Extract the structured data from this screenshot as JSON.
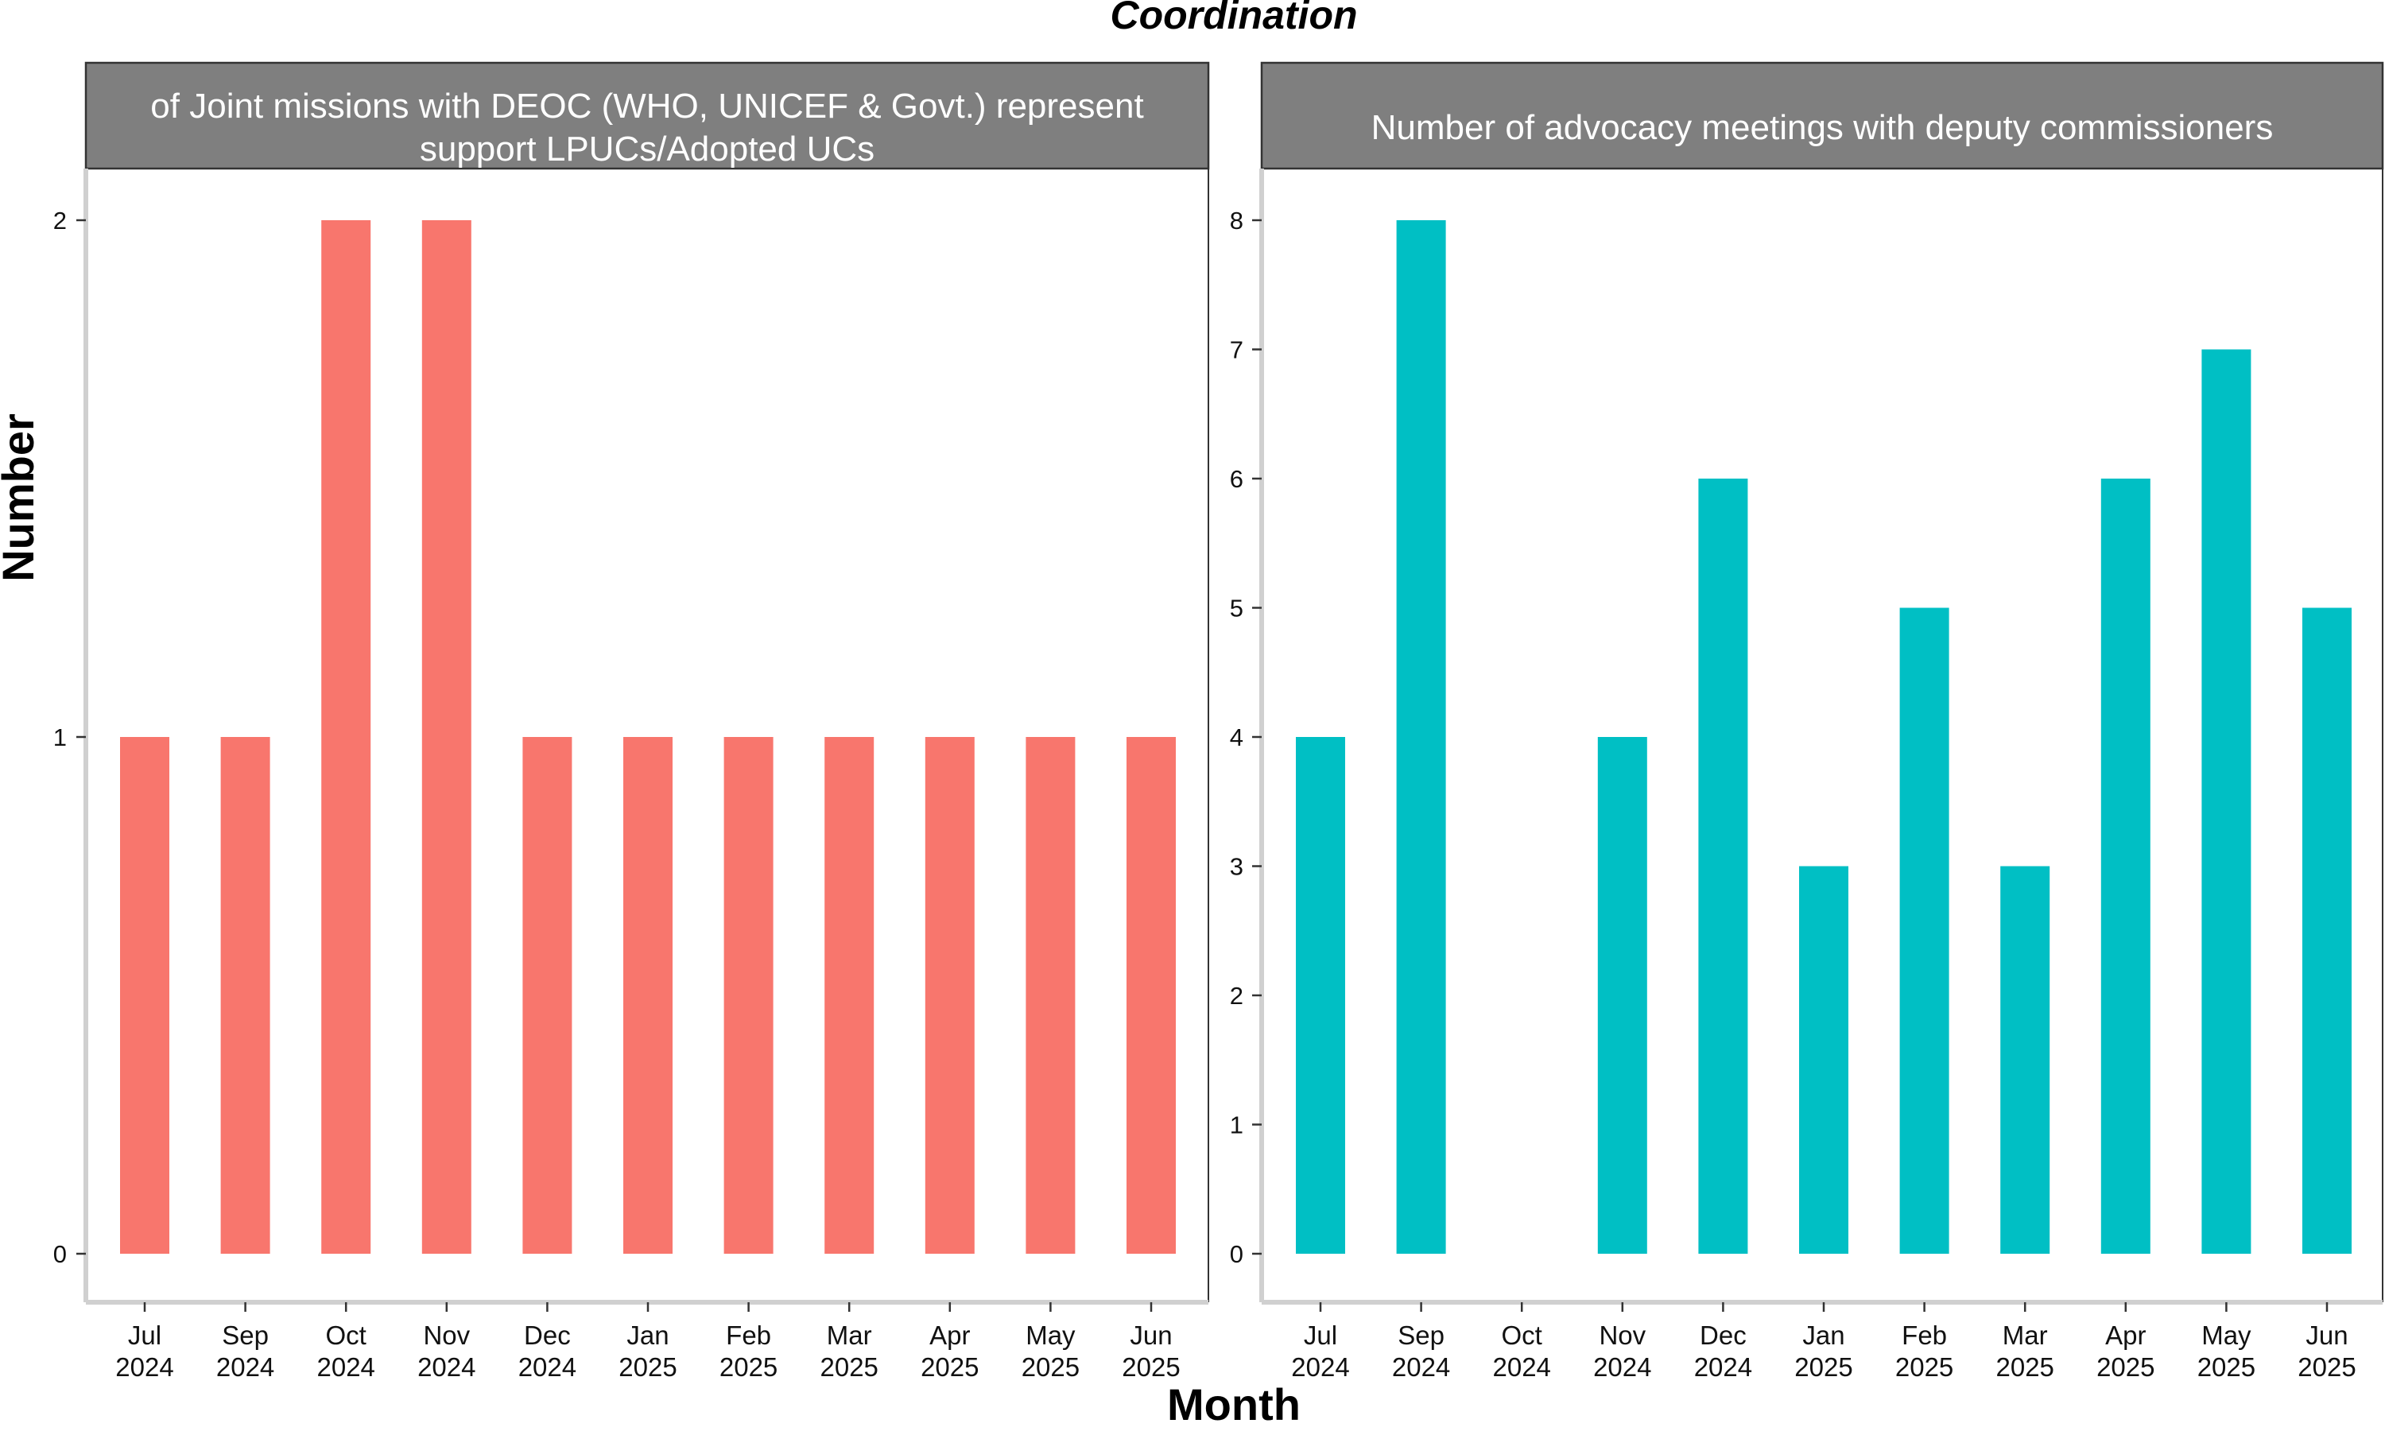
{
  "figure": {
    "title": "Coordination",
    "xlabel": "Month",
    "ylabel": "Number"
  },
  "chart_data": [
    {
      "type": "bar",
      "title": "of Joint missions with DEOC (WHO, UNICEF & Govt.) represent support LPUCs/Adopted UCs",
      "title_lines": [
        "of Joint missions with DEOC (WHO, UNICEF & Govt.) represent",
        "support LPUCs/Adopted UCs"
      ],
      "categories": [
        "Jul 2024",
        "Sep 2024",
        "Oct 2024",
        "Nov 2024",
        "Dec 2024",
        "Jan 2025",
        "Feb 2025",
        "Mar 2025",
        "Apr 2025",
        "May 2025",
        "Jun 2025"
      ],
      "category_lines": [
        [
          "Jul",
          "2024"
        ],
        [
          "Sep",
          "2024"
        ],
        [
          "Oct",
          "2024"
        ],
        [
          "Nov",
          "2024"
        ],
        [
          "Dec",
          "2024"
        ],
        [
          "Jan",
          "2025"
        ],
        [
          "Feb",
          "2025"
        ],
        [
          "Mar",
          "2025"
        ],
        [
          "Apr",
          "2025"
        ],
        [
          "May",
          "2025"
        ],
        [
          "Jun",
          "2025"
        ]
      ],
      "values": [
        1,
        1,
        2,
        2,
        1,
        1,
        1,
        1,
        1,
        1,
        1
      ],
      "yticks": [
        0,
        1,
        2
      ],
      "ylim": [
        -0.1,
        2.1
      ],
      "color": "#F8766D",
      "grid": false,
      "xlabel": "Month",
      "ylabel": "Number"
    },
    {
      "type": "bar",
      "title": "Number of advocacy meetings with deputy commissioners",
      "title_lines": [
        "Number of advocacy meetings with deputy commissioners"
      ],
      "categories": [
        "Jul 2024",
        "Sep 2024",
        "Oct 2024",
        "Nov 2024",
        "Dec 2024",
        "Jan 2025",
        "Feb 2025",
        "Mar 2025",
        "Apr 2025",
        "May 2025",
        "Jun 2025"
      ],
      "category_lines": [
        [
          "Jul",
          "2024"
        ],
        [
          "Sep",
          "2024"
        ],
        [
          "Oct",
          "2024"
        ],
        [
          "Nov",
          "2024"
        ],
        [
          "Dec",
          "2024"
        ],
        [
          "Jan",
          "2025"
        ],
        [
          "Feb",
          "2025"
        ],
        [
          "Mar",
          "2025"
        ],
        [
          "Apr",
          "2025"
        ],
        [
          "May",
          "2025"
        ],
        [
          "Jun",
          "2025"
        ]
      ],
      "values": [
        4,
        8,
        null,
        4,
        6,
        3,
        5,
        3,
        6,
        7,
        5
      ],
      "yticks": [
        0,
        1,
        2,
        3,
        4,
        5,
        6,
        7,
        8
      ],
      "ylim": [
        -0.4,
        8.4
      ],
      "color": "#00BFC4",
      "grid": false,
      "xlabel": "Month",
      "ylabel": "Number"
    }
  ]
}
